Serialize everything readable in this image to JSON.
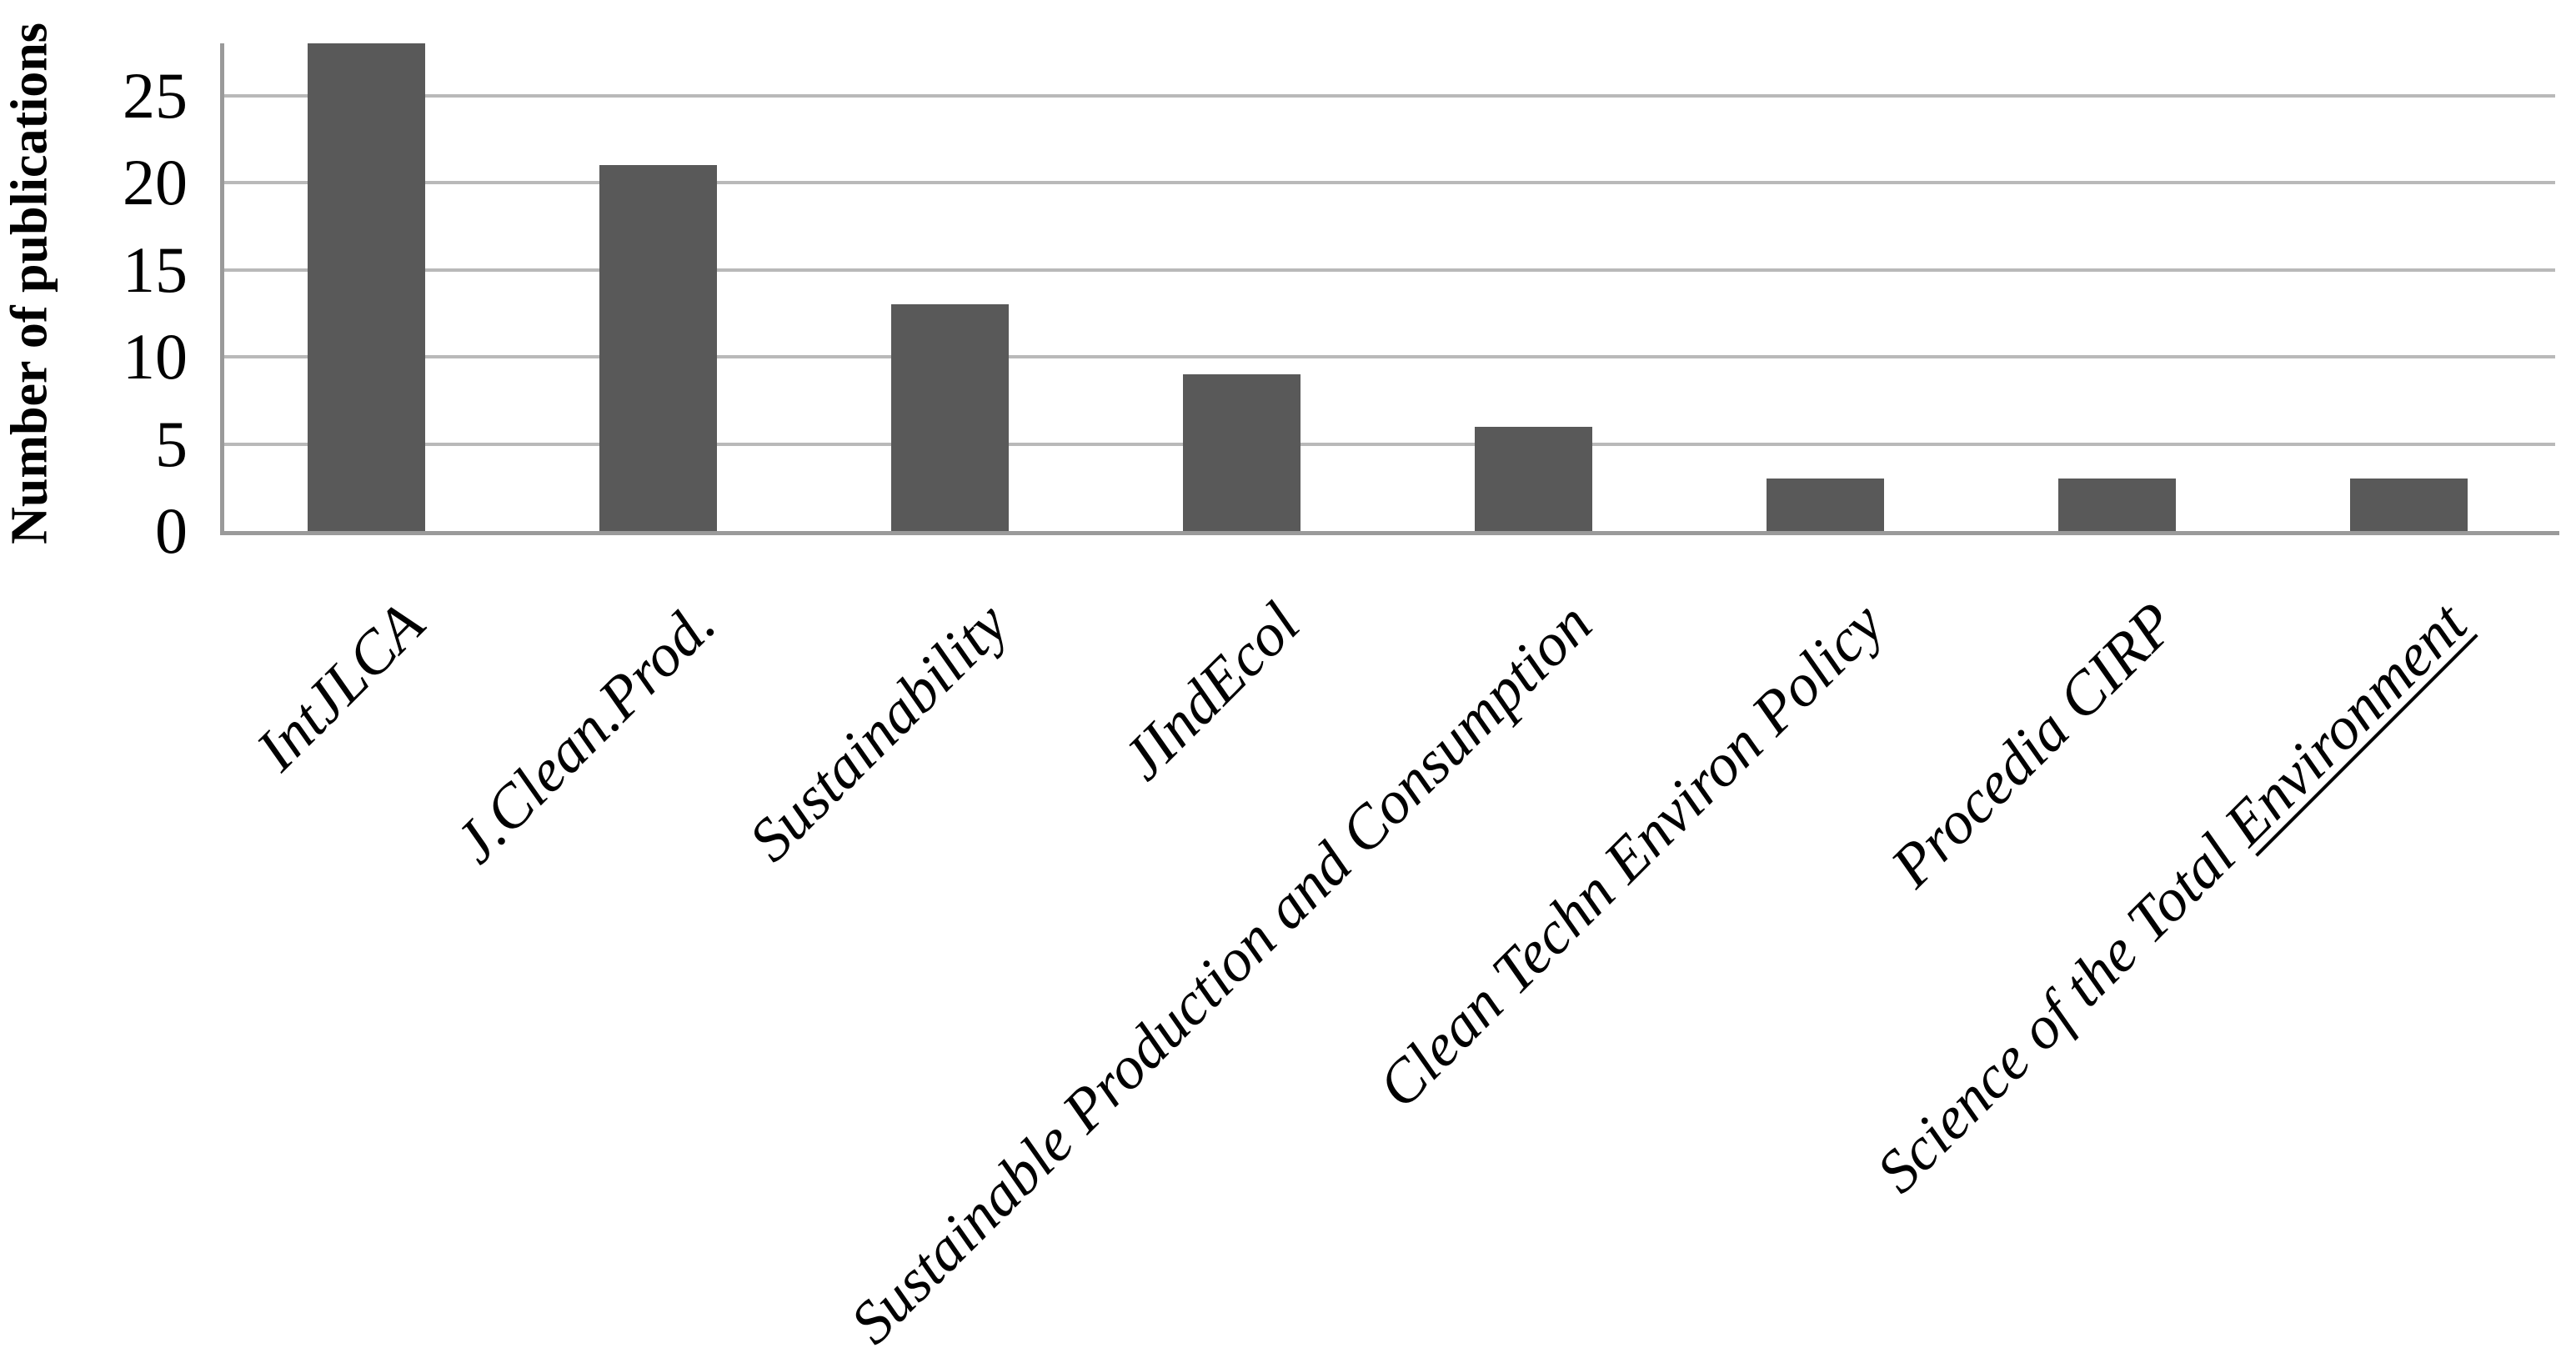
{
  "chart_data": {
    "type": "bar",
    "title": "",
    "ylabel": "Number of publications",
    "xlabel": "",
    "categories": [
      "IntJLCA",
      "J.Clean.Prod.",
      "Sustainability",
      "JIndEcol",
      "Sustainable Production and Consumption",
      "Clean Techn Environ Policy",
      "Procedia CIRP",
      "Science of the Total Environment"
    ],
    "values": [
      28,
      21,
      13,
      9,
      6,
      3,
      3,
      3
    ],
    "ylim": [
      0,
      28
    ],
    "yticks": [
      0,
      5,
      10,
      15,
      20,
      25
    ],
    "grid": true,
    "legend": false,
    "bar_color": "#595959",
    "gridline_color": "#b9b9b9",
    "axis_color": "#9a9a9a",
    "underline": {
      "category_index": 7,
      "substring": "Environment"
    }
  }
}
